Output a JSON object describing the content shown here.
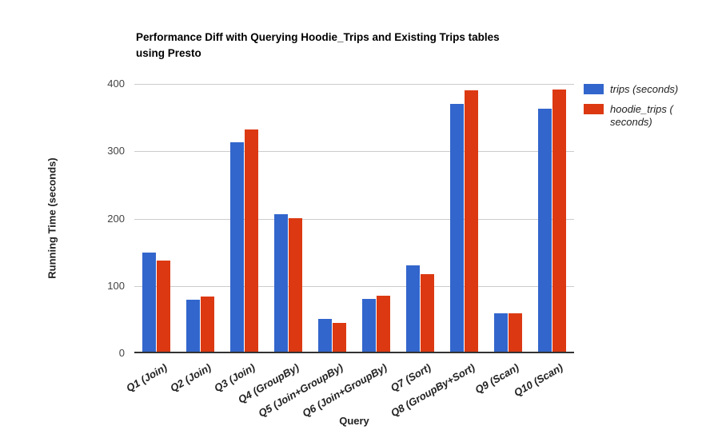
{
  "title": {
    "line1": "Performance Diff with Querying Hoodie_Trips and Existing Trips tables",
    "line2": "using Presto"
  },
  "axes": {
    "y_title": "Running Time (seconds)",
    "x_title": "Query"
  },
  "legend": {
    "position": "right",
    "items": [
      {
        "label": "trips (seconds)",
        "label_lines": [
          "trips (seconds)"
        ],
        "color": "#3366CC"
      },
      {
        "label": "hoodie_trips (seconds)",
        "label_lines": [
          "hoodie_trips (",
          "seconds)"
        ],
        "color": "#DC3912"
      }
    ]
  },
  "colors": {
    "gridline": "#CCCCCC",
    "axis_line": "#333333",
    "tick_label": "#444444",
    "x_label": "#222222",
    "series_blue": "#3366CC",
    "series_red": "#DC3912"
  },
  "chart_data": {
    "type": "bar",
    "title": "Performance Diff with Querying Hoodie_Trips and Existing Trips tables using Presto",
    "xlabel": "Query",
    "ylabel": "Running Time (seconds)",
    "ylim": [
      0,
      400
    ],
    "yticks": [
      0,
      100,
      200,
      300,
      400
    ],
    "grid": true,
    "legend_position": "right",
    "categories": [
      "Q1 (Join)",
      "Q2 (Join)",
      "Q3 (Join)",
      "Q4 (GroupBy)",
      "Q5 (Join+GroupBy)",
      "Q6 (Join+GroupBy)",
      "Q7 (Sort)",
      "Q8 (GroupBy+Sort)",
      "Q9 (Scan)",
      "Q10 (Scan)"
    ],
    "series": [
      {
        "name": "trips (seconds)",
        "key": "trips",
        "color": "#3366CC",
        "values": [
          150,
          80,
          313,
          207,
          51,
          81,
          131,
          370,
          60,
          363
        ]
      },
      {
        "name": "hoodie_trips (seconds)",
        "key": "hoodie-trips",
        "color": "#DC3912",
        "values": [
          138,
          84,
          332,
          201,
          45,
          85,
          117,
          390,
          59,
          392
        ]
      }
    ]
  }
}
